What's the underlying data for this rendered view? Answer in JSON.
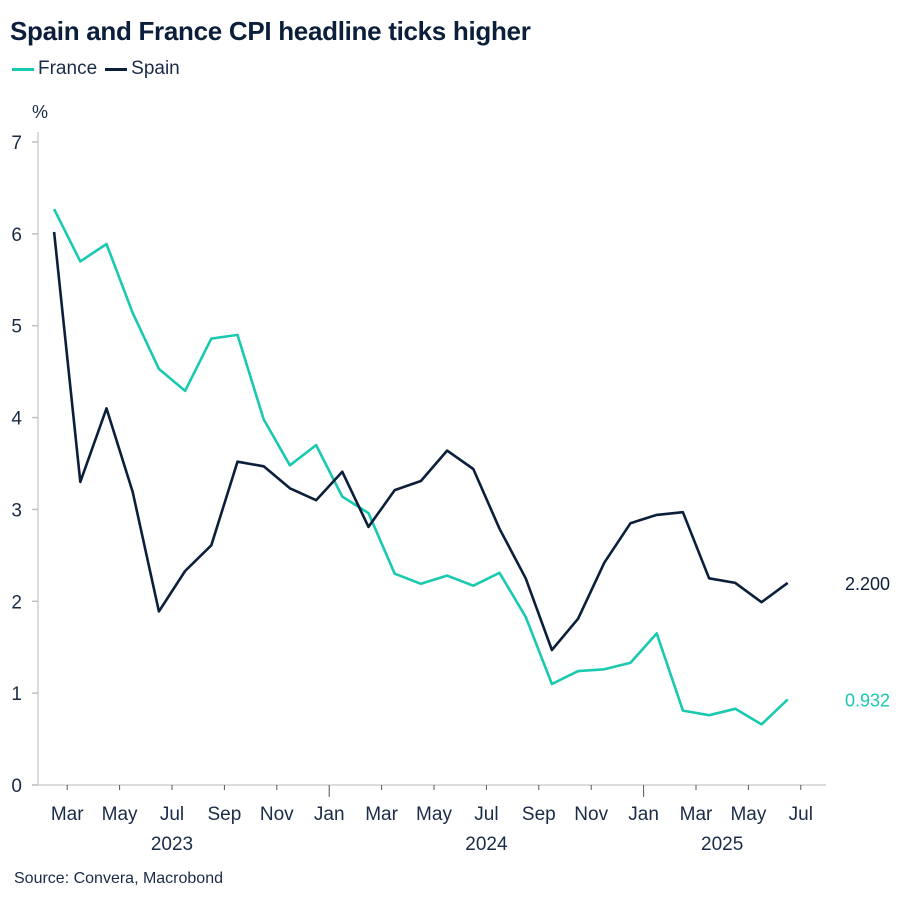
{
  "chart_data": {
    "type": "line",
    "title": "Spain and France CPI headline ticks higher",
    "ylabel": "%",
    "ylim": [
      0,
      7
    ],
    "yticks": [
      "0",
      "1",
      "2",
      "3",
      "4",
      "5",
      "6",
      "7"
    ],
    "x_start": "2023-02",
    "x": [
      "2023-02",
      "2023-03",
      "2023-04",
      "2023-05",
      "2023-06",
      "2023-07",
      "2023-08",
      "2023-09",
      "2023-10",
      "2023-11",
      "2023-12",
      "2024-01",
      "2024-02",
      "2024-03",
      "2024-04",
      "2024-05",
      "2024-06",
      "2024-07",
      "2024-08",
      "2024-09",
      "2024-10",
      "2024-11",
      "2024-12",
      "2025-01",
      "2025-02",
      "2025-03",
      "2025-04",
      "2025-05",
      "2025-06"
    ],
    "xticks": [
      {
        "label": "Mar",
        "month": "2023-03"
      },
      {
        "label": "May",
        "month": "2023-05"
      },
      {
        "label": "Jul",
        "month": "2023-07"
      },
      {
        "label": "Sep",
        "month": "2023-09"
      },
      {
        "label": "Nov",
        "month": "2023-11"
      },
      {
        "label": "Jan",
        "month": "2024-01"
      },
      {
        "label": "Mar",
        "month": "2024-03"
      },
      {
        "label": "May",
        "month": "2024-05"
      },
      {
        "label": "Jul",
        "month": "2024-07"
      },
      {
        "label": "Sep",
        "month": "2024-09"
      },
      {
        "label": "Nov",
        "month": "2024-11"
      },
      {
        "label": "Jan",
        "month": "2025-01"
      },
      {
        "label": "Mar",
        "month": "2025-03"
      },
      {
        "label": "May",
        "month": "2025-05"
      },
      {
        "label": "Jul",
        "month": "2025-07"
      }
    ],
    "year_labels": [
      {
        "label": "2023",
        "center": "2023-07"
      },
      {
        "label": "2024",
        "center": "2024-07"
      },
      {
        "label": "2025",
        "center": "2025-04"
      }
    ],
    "series": [
      {
        "name": "France",
        "color": "#19c9b0",
        "end_label": "0.932",
        "values": [
          6.27,
          5.7,
          5.89,
          5.14,
          4.53,
          4.29,
          4.86,
          4.9,
          3.98,
          3.48,
          3.7,
          3.14,
          2.96,
          2.3,
          2.19,
          2.28,
          2.17,
          2.31,
          1.83,
          1.1,
          1.24,
          1.26,
          1.33,
          1.65,
          0.81,
          0.76,
          0.83,
          0.66,
          0.932
        ]
      },
      {
        "name": "Spain",
        "color": "#0b1f3a",
        "end_label": "2.200",
        "values": [
          6.02,
          3.3,
          4.1,
          3.19,
          1.89,
          2.33,
          2.61,
          3.52,
          3.47,
          3.23,
          3.1,
          3.41,
          2.81,
          3.21,
          3.31,
          3.64,
          3.44,
          2.79,
          2.25,
          1.47,
          1.81,
          2.42,
          2.85,
          2.94,
          2.97,
          2.25,
          2.2,
          1.99,
          2.2
        ]
      }
    ],
    "grid": false,
    "legend": "top-left",
    "source": "Source: Convera, Macrobond"
  }
}
